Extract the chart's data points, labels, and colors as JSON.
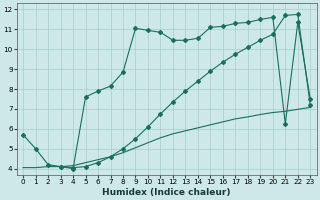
{
  "xlabel": "Humidex (Indice chaleur)",
  "xlim": [
    -0.5,
    23.5
  ],
  "ylim": [
    3.7,
    12.3
  ],
  "xticks": [
    0,
    1,
    2,
    3,
    4,
    5,
    6,
    7,
    8,
    9,
    10,
    11,
    12,
    13,
    14,
    15,
    16,
    17,
    18,
    19,
    20,
    21,
    22,
    23
  ],
  "yticks": [
    4,
    5,
    6,
    7,
    8,
    9,
    10,
    11,
    12
  ],
  "bg_color": "#cce8e8",
  "grid_color": "#aacece",
  "line_color": "#1a6e5e",
  "line1_x": [
    0,
    1,
    2,
    3,
    4,
    5,
    6,
    7,
    8,
    9,
    10,
    11,
    12,
    13,
    14,
    15,
    16,
    17,
    18,
    19,
    20,
    21,
    22,
    23
  ],
  "line1_y": [
    5.7,
    5.0,
    4.2,
    4.1,
    4.0,
    7.6,
    7.9,
    8.15,
    8.85,
    11.05,
    10.95,
    10.85,
    10.45,
    10.45,
    10.55,
    11.1,
    11.15,
    11.3,
    11.35,
    11.5,
    11.6,
    6.25,
    11.35,
    7.5
  ],
  "line2_x": [
    0,
    1,
    2,
    3,
    4,
    5,
    6,
    7,
    8,
    9,
    10,
    11,
    12,
    13,
    14,
    15,
    16,
    17,
    18,
    19,
    20,
    21,
    22,
    23
  ],
  "line2_y": [
    4.05,
    4.05,
    4.1,
    4.1,
    4.15,
    4.3,
    4.45,
    4.6,
    4.8,
    5.05,
    5.3,
    5.55,
    5.75,
    5.9,
    6.05,
    6.2,
    6.35,
    6.5,
    6.6,
    6.72,
    6.82,
    6.88,
    6.98,
    7.08
  ],
  "line3_x": [
    3,
    4,
    5,
    6,
    7,
    8,
    9,
    10,
    11,
    12,
    13,
    14,
    15,
    16,
    17,
    18,
    19,
    20,
    21,
    22,
    23
  ],
  "line3_y": [
    4.1,
    4.05,
    4.1,
    4.3,
    4.6,
    5.0,
    5.5,
    6.1,
    6.75,
    7.35,
    7.9,
    8.4,
    8.9,
    9.35,
    9.75,
    10.1,
    10.45,
    10.75,
    11.7,
    11.75,
    7.2
  ],
  "marker": "D",
  "markersize": 2.0,
  "linewidth": 0.8
}
